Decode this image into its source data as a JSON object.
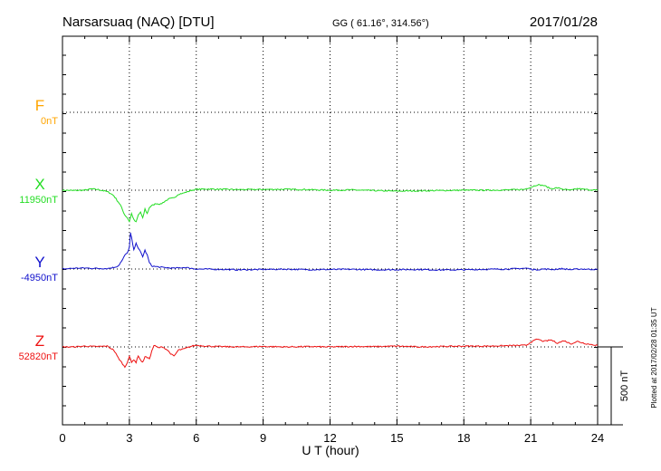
{
  "header": {
    "station": "Narsarsuaq (NAQ)  [DTU]",
    "coords": "GG ( 61.16°, 314.56°)",
    "date": "2017/01/28"
  },
  "side_note": "Plotted at 2017/02/28 01:35 UT",
  "scale_label": "500 nT",
  "chart_data": {
    "type": "line",
    "xlabel": "U T (hour)",
    "xlim": [
      0,
      24
    ],
    "x_ticks": [
      "0",
      "3",
      "6",
      "9",
      "12",
      "15",
      "18",
      "21",
      "24"
    ],
    "grid": true,
    "units": "nT (offset per trace)",
    "series": [
      {
        "name": "F",
        "baseline_label": "0nT",
        "color": "#ffa500",
        "x": [],
        "values": []
      },
      {
        "name": "X",
        "baseline_label": "11950nT",
        "color": "#22dd22",
        "x": [
          0,
          0.5,
          1.0,
          1.3,
          1.6,
          1.9,
          2.1,
          2.3,
          2.5,
          2.6,
          2.7,
          2.8,
          2.9,
          3.0,
          3.1,
          3.2,
          3.3,
          3.4,
          3.5,
          3.6,
          3.7,
          3.8,
          3.9,
          4.0,
          4.2,
          4.4,
          4.6,
          4.8,
          5.0,
          5.2,
          5.4,
          5.6,
          5.7,
          5.8,
          6.0,
          6.5,
          7.0,
          8.0,
          9.0,
          10.0,
          11.0,
          12.0,
          13.0,
          14.0,
          15.0,
          16.0,
          17.0,
          18.0,
          19.0,
          20.0,
          20.7,
          21.0,
          21.3,
          21.6,
          21.9,
          22.2,
          22.5,
          22.8,
          23.1,
          23.5,
          24.0
        ],
        "values": [
          0,
          -2,
          0,
          8,
          4,
          -5,
          -15,
          -35,
          -75,
          -95,
          -130,
          -160,
          -175,
          -200,
          -150,
          -190,
          -205,
          -160,
          -140,
          -180,
          -120,
          -150,
          -110,
          -100,
          -85,
          -90,
          -70,
          -55,
          -50,
          -25,
          -20,
          -10,
          -5,
          0,
          5,
          8,
          6,
          4,
          5,
          6,
          4,
          0,
          2,
          -3,
          -6,
          -4,
          -2,
          0,
          0,
          2,
          5,
          20,
          35,
          30,
          10,
          15,
          5,
          0,
          10,
          4,
          0
        ]
      },
      {
        "name": "Y",
        "baseline_label": "-4950nT",
        "color": "#1010cc",
        "x": [
          0,
          0.5,
          1.0,
          1.5,
          2.0,
          2.3,
          2.5,
          2.7,
          2.8,
          2.9,
          3.0,
          3.05,
          3.1,
          3.2,
          3.3,
          3.4,
          3.5,
          3.6,
          3.7,
          3.8,
          3.9,
          4.0,
          4.2,
          4.5,
          5.0,
          5.5,
          6.0,
          7.0,
          8.0,
          9.0,
          10.0,
          11.0,
          12.0,
          13.0,
          14.0,
          15.0,
          16.0,
          17.0,
          18.0,
          19.0,
          20.0,
          20.8,
          21.2,
          21.6,
          22.0,
          22.4,
          22.8,
          23.2,
          24.0
        ],
        "values": [
          0,
          5,
          6,
          4,
          3,
          10,
          20,
          60,
          90,
          100,
          140,
          230,
          200,
          120,
          170,
          130,
          110,
          80,
          120,
          90,
          40,
          20,
          15,
          10,
          5,
          10,
          0,
          -2,
          -5,
          -3,
          -1,
          -4,
          -3,
          -2,
          -5,
          -4,
          -3,
          -6,
          -5,
          -2,
          0,
          5,
          -5,
          0,
          -3,
          2,
          -4,
          0,
          -3
        ]
      },
      {
        "name": "Z",
        "baseline_label": "52820nT",
        "color": "#ee1111",
        "x": [
          0,
          0.5,
          1.0,
          1.5,
          2.0,
          2.3,
          2.5,
          2.7,
          2.8,
          2.9,
          3.0,
          3.1,
          3.2,
          3.3,
          3.4,
          3.5,
          3.6,
          3.7,
          3.8,
          3.9,
          4.0,
          4.1,
          4.3,
          4.5,
          4.7,
          4.9,
          5.0,
          5.2,
          5.4,
          5.6,
          5.8,
          6.0,
          6.5,
          7.0,
          8.0,
          9.0,
          10.0,
          11.0,
          12.0,
          13.0,
          14.0,
          15.0,
          16.0,
          17.0,
          18.0,
          19.0,
          20.0,
          20.8,
          21.0,
          21.3,
          21.6,
          21.9,
          22.2,
          22.5,
          22.8,
          23.1,
          23.5,
          24.0
        ],
        "values": [
          0,
          0,
          5,
          2,
          5,
          -20,
          -70,
          -110,
          -130,
          -100,
          -60,
          -100,
          -80,
          -100,
          -55,
          -85,
          -100,
          -60,
          -70,
          -75,
          -30,
          10,
          -5,
          0,
          -20,
          -50,
          -60,
          -20,
          -15,
          -5,
          5,
          10,
          5,
          2,
          0,
          3,
          0,
          2,
          0,
          3,
          2,
          5,
          0,
          3,
          5,
          5,
          8,
          10,
          30,
          50,
          35,
          45,
          25,
          40,
          20,
          35,
          20,
          10
        ]
      }
    ]
  },
  "colors": {
    "F": "#ffa500",
    "X": "#22dd22",
    "Y": "#1010cc",
    "Z": "#ee1111",
    "frame": "#000000"
  }
}
